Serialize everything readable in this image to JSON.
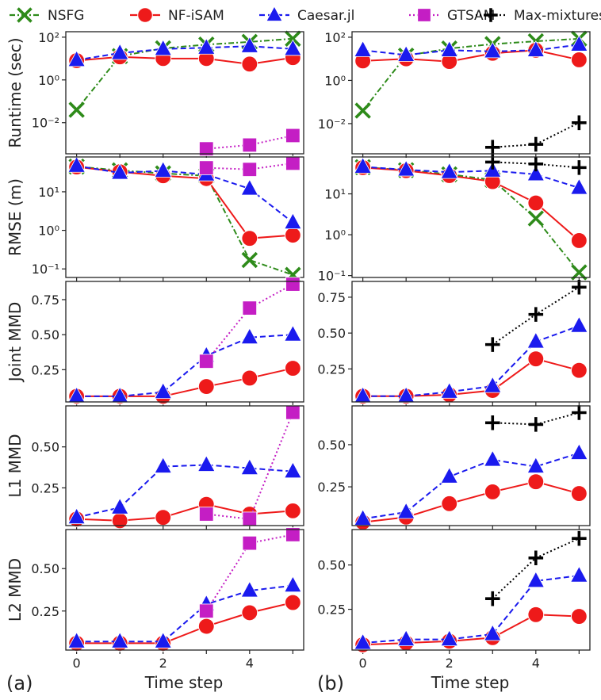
{
  "legend": [
    {
      "name": "NSFG",
      "color": "#2e8b1a",
      "marker": "x",
      "dash": "dashdot"
    },
    {
      "name": "NF-iSAM",
      "color": "#ee1a1a",
      "marker": "o",
      "dash": "solid"
    },
    {
      "name": "Caesar.jl",
      "color": "#1a1aee",
      "marker": "^",
      "dash": "dashed"
    },
    {
      "name": "GTSAM",
      "color": "#c41ec4",
      "marker": "s",
      "dash": "dotted"
    },
    {
      "name": "Max-mixtures",
      "color": "#000000",
      "marker": "+",
      "dash": "dotted"
    }
  ],
  "panel_labels": {
    "a": "(a)",
    "b": "(b)"
  },
  "xlabel": "Time step",
  "chart_data": [
    {
      "type": "line",
      "panel": "a",
      "ylabel": "Runtime (sec)",
      "yscale": "log",
      "ylim": [
        0.00035,
        180
      ],
      "yticks": [
        0.01,
        1,
        100
      ],
      "ytick_labels": [
        "10⁻²",
        "10⁰",
        "10²"
      ],
      "x": [
        0,
        1,
        2,
        3,
        4,
        5
      ],
      "xlim": [
        -0.25,
        5.25
      ],
      "series": [
        {
          "name": "NSFG",
          "values": [
            0.04,
            13,
            30,
            45,
            60,
            85
          ]
        },
        {
          "name": "NF-iSAM",
          "values": [
            8,
            12,
            10,
            10,
            5.5,
            11
          ]
        },
        {
          "name": "Caesar.jl",
          "values": [
            8.5,
            18,
            28,
            32,
            38,
            28
          ]
        },
        {
          "name": "GTSAM",
          "values": [
            null,
            null,
            null,
            0.0006,
            0.0009,
            0.0025
          ]
        },
        {
          "name": "Max-mixtures",
          "values": [
            null,
            null,
            null,
            null,
            null,
            null
          ]
        }
      ]
    },
    {
      "type": "line",
      "panel": "b",
      "ylabel": "",
      "yscale": "log",
      "ylim": [
        0.0004,
        180
      ],
      "yticks": [
        0.01,
        1,
        100
      ],
      "ytick_labels": [
        "10⁻²",
        "10⁰",
        "10²"
      ],
      "x": [
        0,
        1,
        2,
        3,
        4,
        5
      ],
      "xlim": [
        -0.25,
        5.25
      ],
      "series": [
        {
          "name": "NSFG",
          "values": [
            0.04,
            14,
            30,
            48,
            65,
            85
          ]
        },
        {
          "name": "NF-iSAM",
          "values": [
            8,
            10,
            7.5,
            18,
            25,
            9
          ]
        },
        {
          "name": "Caesar.jl",
          "values": [
            25,
            15,
            25,
            22,
            25,
            45
          ]
        },
        {
          "name": "GTSAM",
          "values": [
            null,
            null,
            null,
            null,
            null,
            null
          ]
        },
        {
          "name": "Max-mixtures",
          "values": [
            null,
            null,
            null,
            0.0008,
            0.0011,
            0.011
          ]
        }
      ]
    },
    {
      "type": "line",
      "panel": "a",
      "ylabel": "RMSE (m)",
      "yscale": "log",
      "ylim": [
        0.06,
        80
      ],
      "yticks": [
        0.1,
        1,
        10
      ],
      "ytick_labels": [
        "10⁻¹",
        "10⁰",
        "10¹"
      ],
      "x": [
        0,
        1,
        2,
        3,
        4,
        5
      ],
      "xlim": [
        -0.25,
        5.25
      ],
      "series": [
        {
          "name": "NSFG",
          "values": [
            45,
            36,
            30,
            26,
            0.17,
            0.07
          ]
        },
        {
          "name": "NF-iSAM",
          "values": [
            44,
            33,
            26,
            22,
            0.62,
            0.75
          ]
        },
        {
          "name": "Caesar.jl",
          "values": [
            47,
            31,
            35,
            28,
            12,
            1.6
          ]
        },
        {
          "name": "GTSAM",
          "values": [
            null,
            null,
            null,
            42,
            38,
            55
          ]
        },
        {
          "name": "Max-mixtures",
          "values": [
            null,
            null,
            null,
            null,
            null,
            null
          ]
        }
      ]
    },
    {
      "type": "line",
      "panel": "b",
      "ylabel": "",
      "yscale": "log",
      "ylim": [
        0.09,
        80
      ],
      "yticks": [
        0.1,
        1,
        10
      ],
      "ytick_labels": [
        "10⁻¹",
        "10⁰",
        "10¹"
      ],
      "x": [
        0,
        1,
        2,
        3,
        4,
        5
      ],
      "xlim": [
        -0.25,
        5.25
      ],
      "series": [
        {
          "name": "NSFG",
          "values": [
            45,
            38,
            30,
            22,
            2.5,
            0.12
          ]
        },
        {
          "name": "NF-iSAM",
          "values": [
            44,
            37,
            28,
            20,
            6,
            0.72
          ]
        },
        {
          "name": "Caesar.jl",
          "values": [
            46,
            39,
            34,
            37,
            30,
            14
          ]
        },
        {
          "name": "GTSAM",
          "values": [
            null,
            null,
            null,
            null,
            null,
            null
          ]
        },
        {
          "name": "Max-mixtures",
          "values": [
            null,
            null,
            null,
            60,
            54,
            44
          ]
        }
      ]
    },
    {
      "type": "line",
      "panel": "a",
      "ylabel": "Joint MMD",
      "yscale": "linear",
      "ylim": [
        0.02,
        0.88
      ],
      "yticks": [
        0.25,
        0.5,
        0.75
      ],
      "ytick_labels": [
        "0.25",
        "0.50",
        "0.75"
      ],
      "x": [
        0,
        1,
        2,
        3,
        4,
        5
      ],
      "xlim": [
        -0.25,
        5.25
      ],
      "series": [
        {
          "name": "NSFG",
          "values": [
            null,
            null,
            null,
            null,
            null,
            null
          ]
        },
        {
          "name": "NF-iSAM",
          "values": [
            0.06,
            0.06,
            0.06,
            0.13,
            0.19,
            0.26
          ]
        },
        {
          "name": "Caesar.jl",
          "values": [
            0.06,
            0.06,
            0.09,
            0.35,
            0.48,
            0.5
          ]
        },
        {
          "name": "GTSAM",
          "values": [
            null,
            null,
            null,
            0.31,
            0.69,
            0.86
          ]
        },
        {
          "name": "Max-mixtures",
          "values": [
            null,
            null,
            null,
            null,
            null,
            null
          ]
        }
      ]
    },
    {
      "type": "line",
      "panel": "b",
      "ylabel": "",
      "yscale": "linear",
      "ylim": [
        0.02,
        0.86
      ],
      "yticks": [
        0.25,
        0.5,
        0.75
      ],
      "ytick_labels": [
        "0.25",
        "0.50",
        "0.75"
      ],
      "x": [
        0,
        1,
        2,
        3,
        4,
        5
      ],
      "xlim": [
        -0.25,
        5.25
      ],
      "series": [
        {
          "name": "NSFG",
          "values": [
            null,
            null,
            null,
            null,
            null,
            null
          ]
        },
        {
          "name": "NF-iSAM",
          "values": [
            0.06,
            0.06,
            0.07,
            0.1,
            0.32,
            0.24
          ]
        },
        {
          "name": "Caesar.jl",
          "values": [
            0.06,
            0.06,
            0.09,
            0.13,
            0.44,
            0.55
          ]
        },
        {
          "name": "GTSAM",
          "values": [
            null,
            null,
            null,
            null,
            null,
            null
          ]
        },
        {
          "name": "Max-mixtures",
          "values": [
            null,
            null,
            null,
            0.42,
            0.63,
            0.82
          ]
        }
      ]
    },
    {
      "type": "line",
      "panel": "a",
      "ylabel": "L1 MMD",
      "yscale": "linear",
      "ylim": [
        0.02,
        0.75
      ],
      "yticks": [
        0.25,
        0.5
      ],
      "ytick_labels": [
        "0.25",
        "0.50"
      ],
      "x": [
        0,
        1,
        2,
        3,
        4,
        5
      ],
      "xlim": [
        -0.25,
        5.25
      ],
      "series": [
        {
          "name": "NSFG",
          "values": [
            null,
            null,
            null,
            null,
            null,
            null
          ]
        },
        {
          "name": "NF-iSAM",
          "values": [
            0.06,
            0.05,
            0.07,
            0.15,
            0.09,
            0.11
          ]
        },
        {
          "name": "Caesar.jl",
          "values": [
            0.07,
            0.13,
            0.38,
            0.39,
            0.37,
            0.35
          ]
        },
        {
          "name": "GTSAM",
          "values": [
            null,
            null,
            null,
            0.09,
            0.06,
            0.71
          ]
        },
        {
          "name": "Max-mixtures",
          "values": [
            null,
            null,
            null,
            null,
            null,
            null
          ]
        }
      ]
    },
    {
      "type": "line",
      "panel": "b",
      "ylabel": "",
      "yscale": "linear",
      "ylim": [
        0.02,
        0.73
      ],
      "yticks": [
        0.25,
        0.5
      ],
      "ytick_labels": [
        "0.25",
        "0.50"
      ],
      "x": [
        0,
        1,
        2,
        3,
        4,
        5
      ],
      "xlim": [
        -0.25,
        5.25
      ],
      "series": [
        {
          "name": "NSFG",
          "values": [
            null,
            null,
            null,
            null,
            null,
            null
          ]
        },
        {
          "name": "NF-iSAM",
          "values": [
            0.04,
            0.07,
            0.15,
            0.22,
            0.28,
            0.21
          ]
        },
        {
          "name": "Caesar.jl",
          "values": [
            0.06,
            0.1,
            0.31,
            0.41,
            0.37,
            0.45
          ]
        },
        {
          "name": "GTSAM",
          "values": [
            null,
            null,
            null,
            null,
            null,
            null
          ]
        },
        {
          "name": "Max-mixtures",
          "values": [
            null,
            null,
            null,
            0.63,
            0.62,
            0.69
          ]
        }
      ]
    },
    {
      "type": "line",
      "panel": "a",
      "ylabel": "L2 MMD",
      "yscale": "linear",
      "ylim": [
        0.02,
        0.73
      ],
      "yticks": [
        0.25,
        0.5
      ],
      "ytick_labels": [
        "0.25",
        "0.50"
      ],
      "x": [
        0,
        1,
        2,
        3,
        4,
        5
      ],
      "xlim": [
        -0.25,
        5.25
      ],
      "series": [
        {
          "name": "NSFG",
          "values": [
            null,
            null,
            null,
            null,
            null,
            null
          ]
        },
        {
          "name": "NF-iSAM",
          "values": [
            0.06,
            0.06,
            0.06,
            0.16,
            0.24,
            0.3
          ]
        },
        {
          "name": "Caesar.jl",
          "values": [
            0.07,
            0.07,
            0.07,
            0.29,
            0.37,
            0.4
          ]
        },
        {
          "name": "GTSAM",
          "values": [
            null,
            null,
            null,
            0.25,
            0.65,
            0.7
          ]
        },
        {
          "name": "Max-mixtures",
          "values": [
            null,
            null,
            null,
            null,
            null,
            null
          ]
        }
      ]
    },
    {
      "type": "line",
      "panel": "b",
      "ylabel": "",
      "yscale": "linear",
      "ylim": [
        0.02,
        0.7
      ],
      "yticks": [
        0.25,
        0.5
      ],
      "ytick_labels": [
        "0.25",
        "0.50"
      ],
      "x": [
        0,
        1,
        2,
        3,
        4,
        5
      ],
      "xlim": [
        -0.25,
        5.25
      ],
      "series": [
        {
          "name": "NSFG",
          "values": [
            null,
            null,
            null,
            null,
            null,
            null
          ]
        },
        {
          "name": "NF-iSAM",
          "values": [
            0.05,
            0.06,
            0.07,
            0.09,
            0.22,
            0.21
          ]
        },
        {
          "name": "Caesar.jl",
          "values": [
            0.06,
            0.08,
            0.08,
            0.11,
            0.41,
            0.44
          ]
        },
        {
          "name": "GTSAM",
          "values": [
            null,
            null,
            null,
            null,
            null,
            null
          ]
        },
        {
          "name": "Max-mixtures",
          "values": [
            null,
            null,
            null,
            0.31,
            0.54,
            0.65
          ]
        }
      ]
    }
  ]
}
